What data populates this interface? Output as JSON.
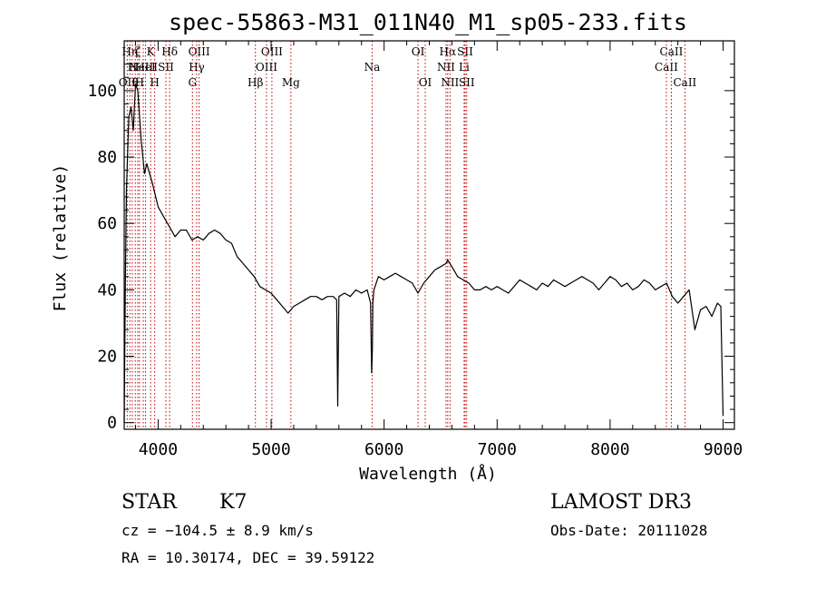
{
  "chart_data": {
    "type": "line",
    "title": "spec-55863-M31_011N40_M1_sp05-233.fits",
    "xlabel": "Wavelength (Å)",
    "ylabel": "Flux (relative)",
    "xlim": [
      3700,
      9100
    ],
    "ylim": [
      -2,
      115
    ],
    "xticks": [
      4000,
      5000,
      6000,
      7000,
      8000,
      9000
    ],
    "yticks": [
      0,
      20,
      40,
      60,
      80,
      100
    ],
    "grid": false,
    "series": [
      {
        "name": "spectrum",
        "x": [
          3700,
          3710,
          3720,
          3740,
          3760,
          3780,
          3800,
          3820,
          3850,
          3880,
          3900,
          3950,
          4000,
          4050,
          4100,
          4150,
          4200,
          4250,
          4300,
          4350,
          4400,
          4450,
          4500,
          4550,
          4600,
          4650,
          4700,
          4750,
          4800,
          4850,
          4900,
          4950,
          5000,
          5050,
          5100,
          5150,
          5200,
          5250,
          5300,
          5350,
          5400,
          5450,
          5500,
          5550,
          5580,
          5590,
          5600,
          5650,
          5700,
          5750,
          5800,
          5850,
          5880,
          5890,
          5896,
          5900,
          5910,
          5950,
          6000,
          6050,
          6100,
          6150,
          6200,
          6250,
          6300,
          6350,
          6400,
          6450,
          6500,
          6550,
          6563,
          6600,
          6650,
          6700,
          6750,
          6800,
          6850,
          6900,
          6950,
          7000,
          7050,
          7100,
          7150,
          7200,
          7250,
          7300,
          7350,
          7400,
          7450,
          7500,
          7550,
          7600,
          7650,
          7700,
          7750,
          7800,
          7850,
          7900,
          7950,
          8000,
          8050,
          8100,
          8150,
          8200,
          8250,
          8300,
          8350,
          8400,
          8450,
          8500,
          8550,
          8600,
          8650,
          8700,
          8750,
          8800,
          8850,
          8900,
          8950,
          8980,
          9000
        ],
        "y": [
          0,
          40,
          70,
          92,
          95,
          88,
          102,
          100,
          85,
          75,
          78,
          72,
          65,
          62,
          59,
          56,
          58,
          58,
          55,
          56,
          55,
          57,
          58,
          57,
          55,
          54,
          50,
          48,
          46,
          44,
          41,
          40,
          39,
          37,
          35,
          33,
          35,
          36,
          37,
          38,
          38,
          37,
          38,
          38,
          37,
          5,
          38,
          39,
          38,
          40,
          39,
          40,
          36,
          15,
          22,
          36,
          40,
          44,
          43,
          44,
          45,
          44,
          43,
          42,
          39,
          42,
          44,
          46,
          47,
          48,
          49,
          47,
          44,
          43,
          42,
          40,
          40,
          41,
          40,
          41,
          40,
          39,
          41,
          43,
          42,
          41,
          40,
          42,
          41,
          43,
          42,
          41,
          42,
          43,
          44,
          43,
          42,
          40,
          42,
          44,
          43,
          41,
          42,
          40,
          41,
          43,
          42,
          40,
          41,
          42,
          38,
          36,
          38,
          40,
          28,
          34,
          35,
          32,
          36,
          35,
          2
        ]
      }
    ],
    "line_markers": [
      {
        "wl": 3727,
        "label": "OII",
        "row": 3
      },
      {
        "wl": 3750,
        "label": "Hη",
        "row": 1
      },
      {
        "wl": 3771,
        "label": "H",
        "row": 2
      },
      {
        "wl": 3798,
        "label": "θ",
        "row": 3
      },
      {
        "wl": 3820,
        "label": "ζ",
        "row": 1
      },
      {
        "wl": 3835,
        "label": "H",
        "row": 3
      },
      {
        "wl": 3869,
        "label": "NeIII",
        "row": 2
      },
      {
        "wl": 3889,
        "label": "HeI",
        "row": 2
      },
      {
        "wl": 3934,
        "label": "K",
        "row": 1
      },
      {
        "wl": 3970,
        "label": "H",
        "row": 3
      },
      {
        "wl": 4069,
        "label": "SII",
        "row": 2
      },
      {
        "wl": 4102,
        "label": "Hδ",
        "row": 1
      },
      {
        "wl": 4304,
        "label": "G",
        "row": 3
      },
      {
        "wl": 4341,
        "label": "Hγ",
        "row": 2
      },
      {
        "wl": 4363,
        "label": "OIII",
        "row": 1
      },
      {
        "wl": 4861,
        "label": "Hβ",
        "row": 3
      },
      {
        "wl": 4959,
        "label": "OIII",
        "row": 2
      },
      {
        "wl": 5007,
        "label": "OIII",
        "row": 1
      },
      {
        "wl": 5175,
        "label": "Mg",
        "row": 3
      },
      {
        "wl": 5894,
        "label": "Na",
        "row": 2
      },
      {
        "wl": 6300,
        "label": "OI",
        "row": 1
      },
      {
        "wl": 6364,
        "label": "OI",
        "row": 3
      },
      {
        "wl": 6548,
        "label": "NII",
        "row": 2
      },
      {
        "wl": 6563,
        "label": "Hα",
        "row": 1
      },
      {
        "wl": 6583,
        "label": "NII",
        "row": 3
      },
      {
        "wl": 6708,
        "label": "Li",
        "row": 2
      },
      {
        "wl": 6717,
        "label": "SII",
        "row": 1
      },
      {
        "wl": 6731,
        "label": "SII",
        "row": 3
      },
      {
        "wl": 8498,
        "label": "CaII",
        "row": 2
      },
      {
        "wl": 8542,
        "label": "CaII",
        "row": 1
      },
      {
        "wl": 8662,
        "label": "CaII",
        "row": 3
      }
    ]
  },
  "info": {
    "class": "STAR",
    "subclass": "K7",
    "survey": "LAMOST DR3",
    "cz": "cz = −104.5 ± 8.9 km/s",
    "obs_date": "Obs-Date: 20111028",
    "radec": "RA =  10.30174, DEC =  39.59122"
  },
  "colors": {
    "line": "#000000",
    "marker": "#c00000"
  }
}
